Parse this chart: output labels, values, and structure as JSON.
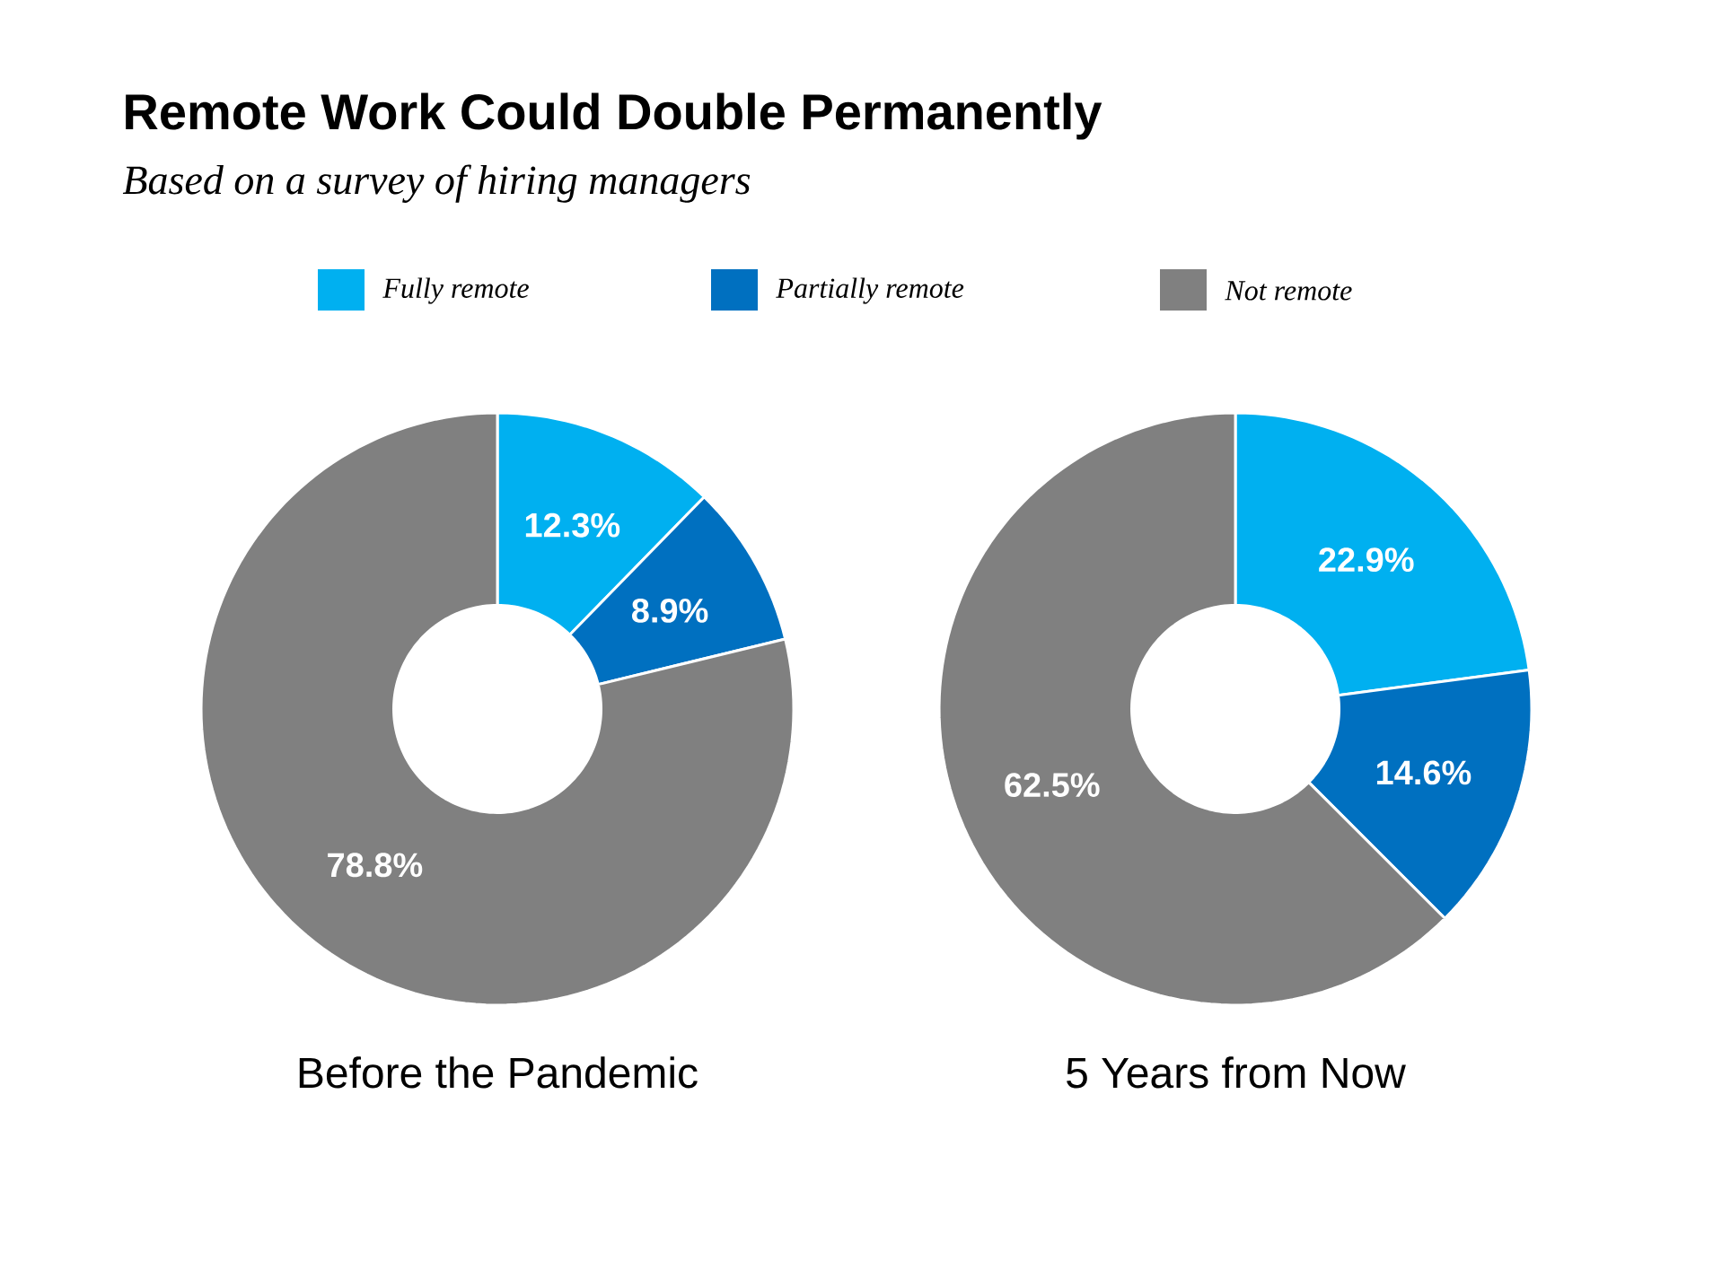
{
  "chart_data": [
    {
      "type": "donut",
      "title": "Remote Work Could Double Permanently",
      "subtitle": "Based on a survey of hiring managers",
      "xlabel": "Before the Pandemic",
      "legend": "top",
      "categories": [
        "Fully remote",
        "Partially remote",
        "Not remote"
      ],
      "values": [
        12.3,
        8.9,
        78.8
      ],
      "colors": [
        "#00b0f0",
        "#0070c0",
        "#808080"
      ],
      "value_labels": [
        "12.3%",
        "8.9%",
        "78.8%"
      ]
    },
    {
      "type": "donut",
      "xlabel": "5 Years from Now",
      "categories": [
        null,
        null,
        null
      ],
      "values": [
        22.9,
        14.6,
        62.5
      ],
      "colors": [
        "#00b0f0",
        "#0070c0",
        "#808080"
      ],
      "value_labels": [
        "22.9%",
        "14.6%",
        "62.5%"
      ]
    }
  ]
}
